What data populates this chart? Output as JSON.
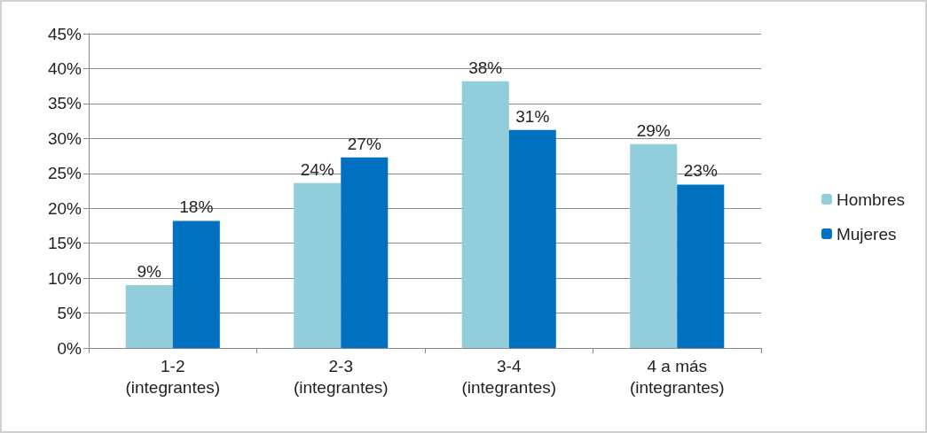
{
  "chart_data": {
    "type": "bar",
    "categories": [
      "1-2\n(integrantes)",
      "2-3\n(integrantes)",
      "3-4\n(integrantes)",
      "4 a más\n(integrantes)"
    ],
    "series": [
      {
        "name": "Hombres",
        "color": "#92cddc",
        "values": [
          9,
          23.6,
          38.2,
          29.2
        ],
        "value_labels": [
          "9%",
          "24%",
          "38%",
          "29%"
        ]
      },
      {
        "name": "Mujeres",
        "color": "#0070c0",
        "values": [
          18.2,
          27.3,
          31.2,
          23.4
        ],
        "value_labels": [
          "18%",
          "27%",
          "31%",
          "23%"
        ]
      }
    ],
    "ylim": [
      0,
      45
    ],
    "yticks": [
      {
        "value": 0,
        "label": "0%"
      },
      {
        "value": 5,
        "label": "5%"
      },
      {
        "value": 10,
        "label": "10%"
      },
      {
        "value": 15,
        "label": "15%"
      },
      {
        "value": 20,
        "label": "20%"
      },
      {
        "value": 25,
        "label": "25%"
      },
      {
        "value": 30,
        "label": "30%"
      },
      {
        "value": 35,
        "label": "35%"
      },
      {
        "value": 40,
        "label": "40%"
      },
      {
        "value": 45,
        "label": "45%"
      }
    ],
    "grid": "y",
    "legend": "right"
  }
}
